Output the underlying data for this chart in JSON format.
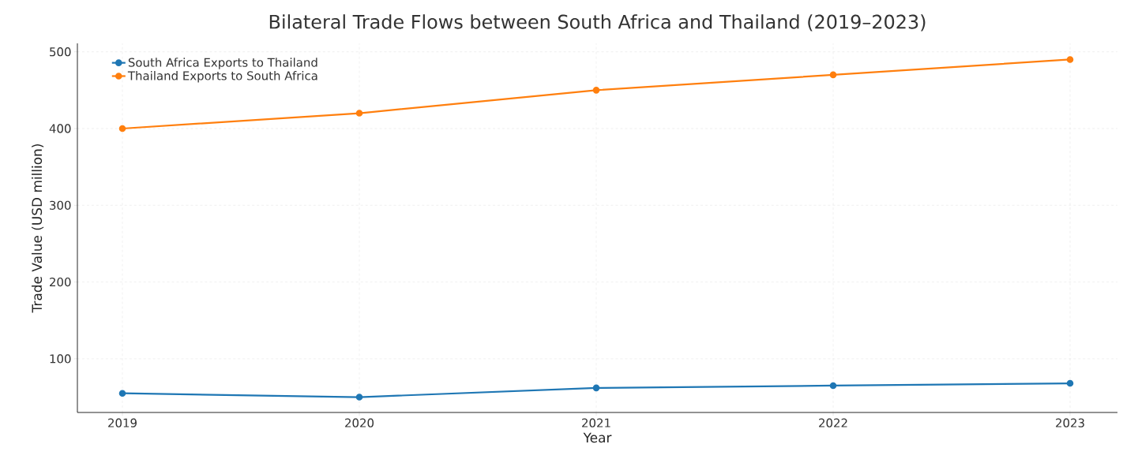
{
  "chart_data": {
    "type": "line",
    "title": "Bilateral Trade Flows between South Africa and Thailand (2019–2023)",
    "xlabel": "Year",
    "ylabel": "Trade Value (USD million)",
    "x": [
      2019,
      2020,
      2021,
      2022,
      2023
    ],
    "series": [
      {
        "name": "South Africa Exports to Thailand",
        "color": "#1f77b4",
        "values": [
          55,
          50,
          62,
          65,
          68
        ]
      },
      {
        "name": "Thailand Exports to South Africa",
        "color": "#ff7f0e",
        "values": [
          400,
          420,
          450,
          470,
          490
        ]
      }
    ],
    "xlim": [
      2018.81,
      2023.2
    ],
    "ylim": [
      30,
      511
    ],
    "xticks": [
      2019,
      2020,
      2021,
      2022,
      2023
    ],
    "yticks": [
      100,
      200,
      300,
      400,
      500
    ],
    "grid": true,
    "legend": "top left",
    "marker": "circle",
    "line_style": "solid"
  }
}
